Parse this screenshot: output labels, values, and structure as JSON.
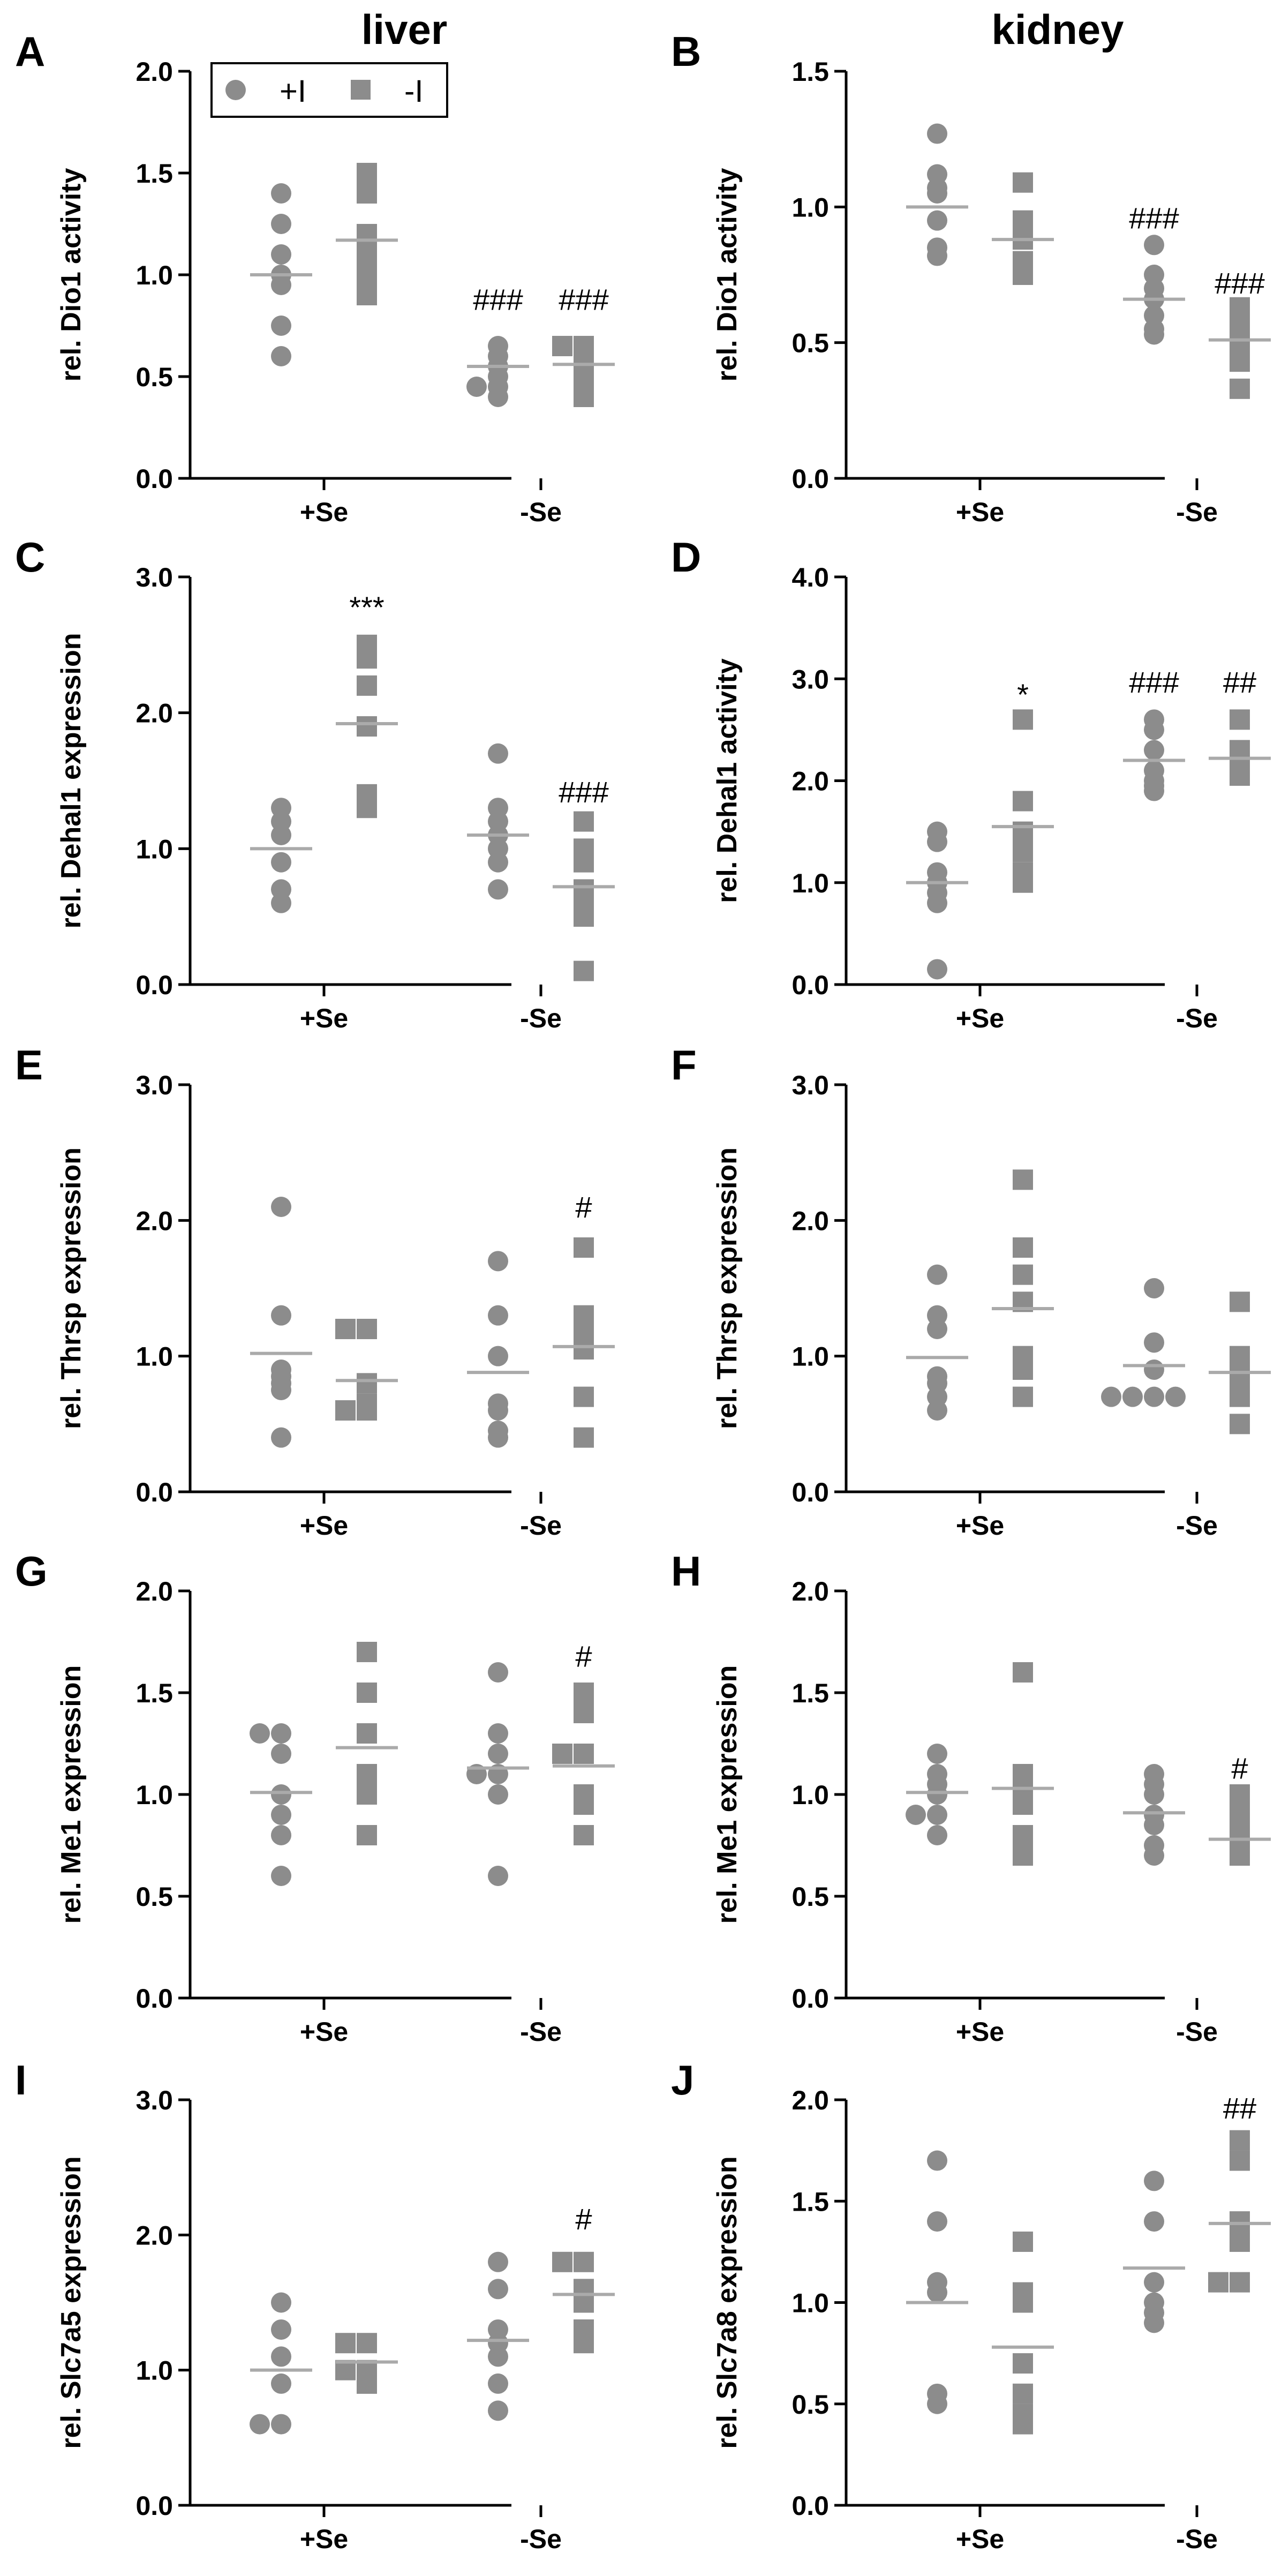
{
  "column_titles": [
    "liver",
    "kidney"
  ],
  "legend": {
    "entries": [
      {
        "label": "+I",
        "marker": "circle"
      },
      {
        "label": "-I",
        "marker": "square"
      }
    ]
  },
  "colors": {
    "marker": "#8c8c8c",
    "mean": "#aaaaaa",
    "axis": "#000000"
  },
  "chart_data": [
    {
      "panel": "A",
      "tissue": "liver",
      "type": "scatter",
      "ylabel": "rel. Dio1 activity",
      "categories": [
        "+Se",
        "-Se"
      ],
      "ylim": [
        0,
        2.0
      ],
      "yticks": [
        0,
        0.5,
        1.0,
        1.5,
        2.0
      ],
      "ytick_labels": [
        "0.0",
        "0.5",
        "1.0",
        "1.5",
        "2.0"
      ],
      "series": [
        {
          "name": "+I",
          "marker": "circle",
          "values": [
            [
              1.4,
              1.25,
              1.1,
              1.0,
              0.95,
              0.75,
              0.6
            ],
            [
              0.65,
              0.6,
              0.55,
              0.5,
              0.45,
              0.45,
              0.4
            ]
          ],
          "means": [
            1.0,
            0.55
          ]
        },
        {
          "name": "-I",
          "marker": "square",
          "values": [
            [
              1.5,
              1.4,
              1.2,
              1.15,
              1.1,
              1.0,
              0.9
            ],
            [
              0.65,
              0.65,
              0.6,
              0.55,
              0.5,
              0.45,
              0.4
            ]
          ],
          "means": [
            1.17,
            0.56
          ]
        }
      ],
      "annotations": [
        {
          "text": "###",
          "group": 1,
          "series": 0,
          "value": 0.88
        },
        {
          "text": "###",
          "group": 1,
          "series": 1,
          "value": 0.88
        }
      ]
    },
    {
      "panel": "B",
      "tissue": "kidney",
      "type": "scatter",
      "ylabel": "rel. Dio1 activity",
      "categories": [
        "+Se",
        "-Se"
      ],
      "ylim": [
        0,
        1.5
      ],
      "yticks": [
        0,
        0.5,
        1.0,
        1.5
      ],
      "ytick_labels": [
        "0.0",
        "0.5",
        "1.0",
        "1.5"
      ],
      "series": [
        {
          "name": "+I",
          "marker": "circle",
          "values": [
            [
              1.27,
              1.12,
              1.07,
              1.05,
              0.95,
              0.85,
              0.82
            ],
            [
              0.86,
              0.75,
              0.7,
              0.66,
              0.6,
              0.55,
              0.53
            ]
          ],
          "means": [
            1.0,
            0.66
          ]
        },
        {
          "name": "-I",
          "marker": "square",
          "values": [
            [
              1.09,
              0.95,
              0.93,
              0.88,
              0.8,
              0.76,
              0.75
            ],
            [
              0.63,
              0.6,
              0.56,
              0.5,
              0.45,
              0.43,
              0.33
            ]
          ],
          "means": [
            0.88,
            0.51
          ]
        }
      ],
      "annotations": [
        {
          "text": "###",
          "group": 1,
          "series": 0,
          "value": 0.96
        },
        {
          "text": "###",
          "group": 1,
          "series": 1,
          "value": 0.72
        }
      ]
    },
    {
      "panel": "C",
      "tissue": "liver",
      "type": "scatter",
      "ylabel": "rel. Dehal1 expression",
      "categories": [
        "+Se",
        "-Se"
      ],
      "ylim": [
        0,
        3.0
      ],
      "yticks": [
        0,
        1.0,
        2.0,
        3.0
      ],
      "ytick_labels": [
        "0.0",
        "1.0",
        "2.0",
        "3.0"
      ],
      "series": [
        {
          "name": "+I",
          "marker": "circle",
          "values": [
            [
              1.3,
              1.2,
              1.1,
              0.9,
              0.7,
              0.6
            ],
            [
              1.7,
              1.3,
              1.2,
              1.1,
              1.0,
              0.9,
              0.7
            ]
          ],
          "means": [
            1.0,
            1.1
          ]
        },
        {
          "name": "-I",
          "marker": "square",
          "values": [
            [
              2.5,
              2.4,
              2.2,
              1.9,
              1.4,
              1.3
            ],
            [
              1.2,
              1.0,
              0.9,
              0.7,
              0.6,
              0.5,
              0.1
            ]
          ],
          "means": [
            1.92,
            0.72
          ]
        }
      ],
      "annotations": [
        {
          "text": "***",
          "group": 0,
          "series": 1,
          "value": 2.78
        },
        {
          "text": "###",
          "group": 1,
          "series": 1,
          "value": 1.42
        }
      ]
    },
    {
      "panel": "D",
      "tissue": "kidney",
      "type": "scatter",
      "ylabel": "rel. Dehal1 activity",
      "categories": [
        "+Se",
        "-Se"
      ],
      "ylim": [
        0,
        4.0
      ],
      "yticks": [
        0,
        1.0,
        2.0,
        3.0,
        4.0
      ],
      "ytick_labels": [
        "0.0",
        "1.0",
        "2.0",
        "3.0",
        "4.0"
      ],
      "series": [
        {
          "name": "+I",
          "marker": "circle",
          "values": [
            [
              1.5,
              1.4,
              1.1,
              1.0,
              0.9,
              0.8,
              0.15
            ],
            [
              2.6,
              2.5,
              2.3,
              2.1,
              2.0,
              1.95,
              1.9
            ]
          ],
          "means": [
            1.0,
            2.2
          ]
        },
        {
          "name": "-I",
          "marker": "square",
          "values": [
            [
              2.6,
              1.8,
              1.5,
              1.4,
              1.3,
              1.1,
              1.0
            ],
            [
              2.6,
              2.3,
              2.25,
              2.2,
              2.15,
              2.1,
              2.05
            ]
          ],
          "means": [
            1.55,
            2.22
          ]
        }
      ],
      "annotations": [
        {
          "text": "*",
          "group": 0,
          "series": 1,
          "value": 2.85
        },
        {
          "text": "###",
          "group": 1,
          "series": 0,
          "value": 2.97
        },
        {
          "text": "##",
          "group": 1,
          "series": 1,
          "value": 2.97
        }
      ]
    },
    {
      "panel": "E",
      "tissue": "liver",
      "type": "scatter",
      "ylabel": "rel. Thrsp expression",
      "categories": [
        "+Se",
        "-Se"
      ],
      "ylim": [
        0,
        3.0
      ],
      "yticks": [
        0,
        1.0,
        2.0,
        3.0
      ],
      "ytick_labels": [
        "0.0",
        "1.0",
        "2.0",
        "3.0"
      ],
      "series": [
        {
          "name": "+I",
          "marker": "circle",
          "values": [
            [
              2.1,
              1.3,
              0.9,
              0.85,
              0.8,
              0.75,
              0.4
            ],
            [
              1.7,
              1.3,
              1.0,
              0.65,
              0.6,
              0.45,
              0.4
            ]
          ],
          "means": [
            1.02,
            0.88
          ]
        },
        {
          "name": "-I",
          "marker": "square",
          "values": [
            [
              1.2,
              1.2,
              0.8,
              0.65,
              0.6,
              0.6
            ],
            [
              1.8,
              1.3,
              1.2,
              1.1,
              1.05,
              0.7,
              0.4
            ]
          ],
          "means": [
            0.82,
            1.07
          ]
        }
      ],
      "annotations": [
        {
          "text": "#",
          "group": 1,
          "series": 1,
          "value": 2.1
        }
      ]
    },
    {
      "panel": "F",
      "tissue": "kidney",
      "type": "scatter",
      "ylabel": "rel. Thrsp expression",
      "categories": [
        "+Se",
        "-Se"
      ],
      "ylim": [
        0,
        3.0
      ],
      "yticks": [
        0,
        1.0,
        2.0,
        3.0
      ],
      "ytick_labels": [
        "0.0",
        "1.0",
        "2.0",
        "3.0"
      ],
      "series": [
        {
          "name": "+I",
          "marker": "circle",
          "values": [
            [
              1.6,
              1.3,
              1.2,
              0.85,
              0.8,
              0.7,
              0.6
            ],
            [
              1.5,
              1.1,
              0.9,
              0.7,
              0.7,
              0.7,
              0.7
            ]
          ],
          "means": [
            0.99,
            0.93
          ]
        },
        {
          "name": "-I",
          "marker": "square",
          "values": [
            [
              2.3,
              1.8,
              1.6,
              1.4,
              1.0,
              0.9,
              0.7
            ],
            [
              1.4,
              1.0,
              0.9,
              0.8,
              0.7,
              0.5
            ]
          ],
          "means": [
            1.35,
            0.88
          ]
        }
      ],
      "annotations": []
    },
    {
      "panel": "G",
      "tissue": "liver",
      "type": "scatter",
      "ylabel": "rel. Me1 expression",
      "categories": [
        "+Se",
        "-Se"
      ],
      "ylim": [
        0,
        2.0
      ],
      "yticks": [
        0,
        0.5,
        1.0,
        1.5,
        2.0
      ],
      "ytick_labels": [
        "0.0",
        "0.5",
        "1.0",
        "1.5",
        "2.0"
      ],
      "series": [
        {
          "name": "+I",
          "marker": "circle",
          "values": [
            [
              1.3,
              1.3,
              1.2,
              1.0,
              0.9,
              0.8,
              0.6
            ],
            [
              1.6,
              1.3,
              1.2,
              1.1,
              1.1,
              1.0,
              0.6
            ]
          ],
          "means": [
            1.01,
            1.13
          ]
        },
        {
          "name": "-I",
          "marker": "square",
          "values": [
            [
              1.7,
              1.5,
              1.3,
              1.1,
              1.0,
              0.8
            ],
            [
              1.5,
              1.4,
              1.2,
              1.2,
              1.0,
              0.95,
              0.8
            ]
          ],
          "means": [
            1.23,
            1.14
          ]
        }
      ],
      "annotations": [
        {
          "text": "#",
          "group": 1,
          "series": 1,
          "value": 1.68
        }
      ]
    },
    {
      "panel": "H",
      "tissue": "kidney",
      "type": "scatter",
      "ylabel": "rel. Me1 expression",
      "categories": [
        "+Se",
        "-Se"
      ],
      "ylim": [
        0,
        2.0
      ],
      "yticks": [
        0,
        0.5,
        1.0,
        1.5,
        2.0
      ],
      "ytick_labels": [
        "0.0",
        "0.5",
        "1.0",
        "1.5",
        "2.0"
      ],
      "series": [
        {
          "name": "+I",
          "marker": "circle",
          "values": [
            [
              1.2,
              1.1,
              1.05,
              1.0,
              0.9,
              0.9,
              0.8
            ],
            [
              1.1,
              1.05,
              1.0,
              0.9,
              0.85,
              0.75,
              0.7
            ]
          ],
          "means": [
            1.01,
            0.91
          ]
        },
        {
          "name": "-I",
          "marker": "square",
          "values": [
            [
              1.6,
              1.1,
              1.05,
              1.0,
              0.95,
              0.8,
              0.7
            ],
            [
              1.0,
              0.9,
              0.8,
              0.75,
              0.72,
              0.7
            ]
          ],
          "means": [
            1.03,
            0.78
          ]
        }
      ],
      "annotations": [
        {
          "text": "#",
          "group": 1,
          "series": 1,
          "value": 1.13
        }
      ]
    },
    {
      "panel": "I",
      "tissue": "liver",
      "type": "scatter",
      "ylabel": "rel. Slc7a5 expression",
      "categories": [
        "+Se",
        "-Se"
      ],
      "ylim": [
        0,
        3.0
      ],
      "yticks": [
        0,
        1.0,
        2.0,
        3.0
      ],
      "ytick_labels": [
        "0.0",
        "1.0",
        "2.0",
        "3.0"
      ],
      "series": [
        {
          "name": "+I",
          "marker": "circle",
          "values": [
            [
              1.5,
              1.3,
              1.1,
              0.9,
              0.6,
              0.6
            ],
            [
              1.8,
              1.6,
              1.3,
              1.2,
              1.1,
              0.9,
              0.7
            ]
          ],
          "means": [
            1.0,
            1.22
          ]
        },
        {
          "name": "-I",
          "marker": "square",
          "values": [
            [
              1.2,
              1.2,
              1.0,
              1.0,
              0.9
            ],
            [
              1.8,
              1.8,
              1.6,
              1.5,
              1.3,
              1.2
            ]
          ],
          "means": [
            1.06,
            1.56
          ]
        }
      ],
      "annotations": [
        {
          "text": "#",
          "group": 1,
          "series": 1,
          "value": 2.12
        }
      ]
    },
    {
      "panel": "J",
      "tissue": "kidney",
      "type": "scatter",
      "ylabel": "rel. Slc7a8 expression",
      "categories": [
        "+Se",
        "-Se"
      ],
      "ylim": [
        0,
        2.0
      ],
      "yticks": [
        0,
        0.5,
        1.0,
        1.5,
        2.0
      ],
      "ytick_labels": [
        "0.0",
        "0.5",
        "1.0",
        "1.5",
        "2.0"
      ],
      "series": [
        {
          "name": "+I",
          "marker": "circle",
          "values": [
            [
              1.7,
              1.4,
              1.1,
              1.05,
              0.55,
              0.5
            ],
            [
              1.6,
              1.4,
              1.1,
              1.0,
              0.95,
              0.9
            ]
          ],
          "means": [
            1.0,
            1.17
          ]
        },
        {
          "name": "-I",
          "marker": "square",
          "values": [
            [
              1.3,
              1.05,
              1.0,
              0.7,
              0.55,
              0.45,
              0.4
            ],
            [
              1.8,
              1.7,
              1.4,
              1.3,
              1.1,
              1.1
            ]
          ],
          "means": [
            0.78,
            1.39
          ]
        }
      ],
      "annotations": [
        {
          "text": "##",
          "group": 1,
          "series": 1,
          "value": 1.96
        }
      ]
    }
  ]
}
